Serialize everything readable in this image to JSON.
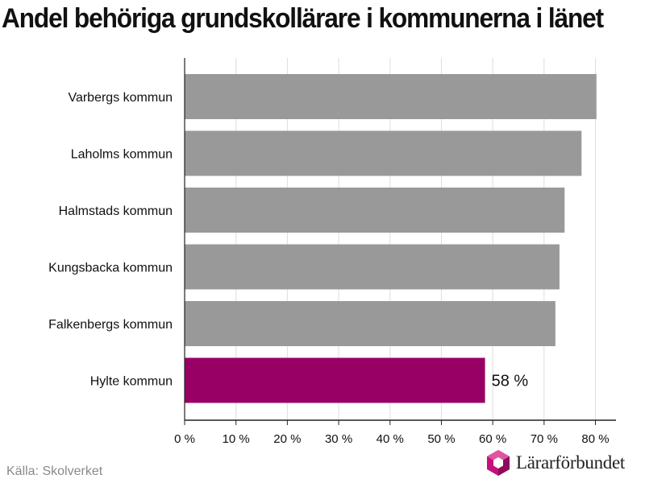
{
  "title": "Andel behöriga grundskollärare i kommunerna i länet",
  "source": "Källa: Skolverket",
  "logo_text": "Lärarförbundet",
  "colors": {
    "bar": "#999999",
    "highlight": "#990066",
    "grid": "#dddddd",
    "axis": "#222222"
  },
  "chart_data": {
    "type": "bar",
    "orientation": "horizontal",
    "title": "Andel behöriga grundskollärare i kommunerna i länet",
    "categories": [
      "Varbergs kommun",
      "Laholms kommun",
      "Halmstads kommun",
      "Kungsbacka kommun",
      "Falkenbergs kommun",
      "Hylte kommun"
    ],
    "values": [
      80.2,
      77.3,
      74.0,
      73.0,
      72.2,
      58.5
    ],
    "highlight_index": 5,
    "data_labels": [
      {
        "index": 5,
        "text": "58 %"
      }
    ],
    "xlim": [
      0,
      84
    ],
    "xticks": [
      0,
      10,
      20,
      30,
      40,
      50,
      60,
      70,
      80
    ],
    "xtick_labels": [
      "0 %",
      "10 %",
      "20 %",
      "30 %",
      "40 %",
      "50 %",
      "60 %",
      "70 %",
      "80 %"
    ],
    "grid": true,
    "legend": "none",
    "xlabel": "",
    "ylabel": ""
  }
}
